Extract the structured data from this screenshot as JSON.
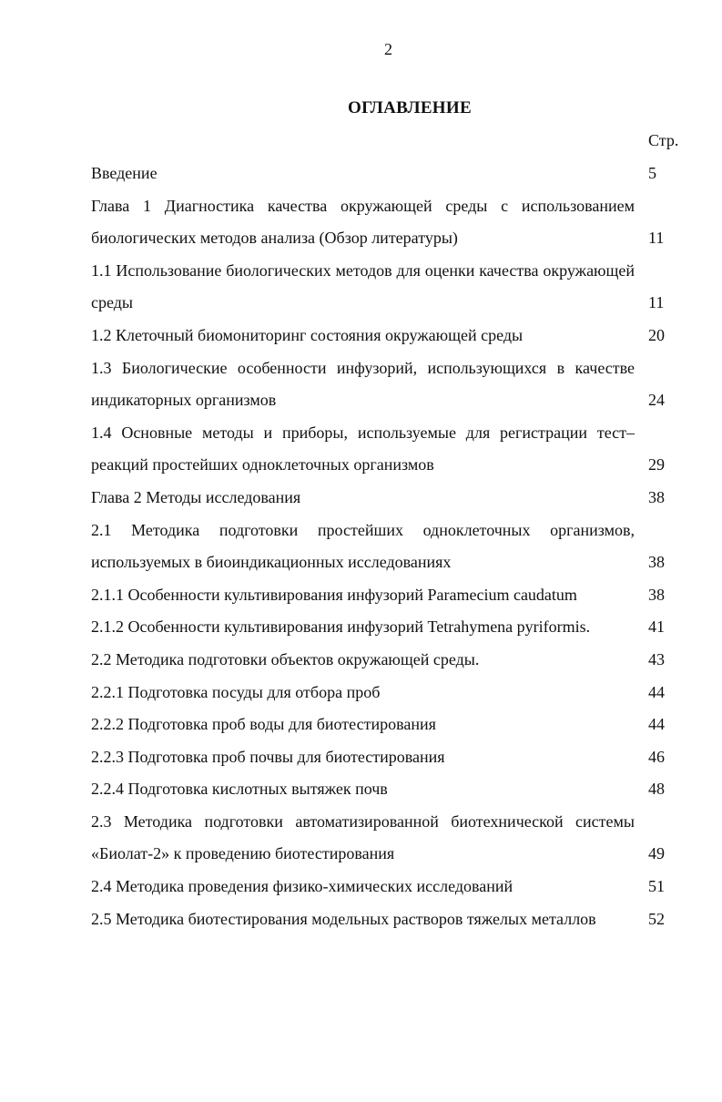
{
  "page_number": "2",
  "title": "ОГЛАВЛЕНИЕ",
  "page_column_label": "Стр.",
  "entries": [
    {
      "text": "Введение",
      "page": "5"
    },
    {
      "text": "Глава 1 Диагностика качества окружающей среды с использованием биологических методов анализа (Обзор литературы)",
      "page": "11"
    },
    {
      "text": "1.1 Использование биологических методов для оценки качества окружающей среды",
      "page": "11"
    },
    {
      "text": "1.2 Клеточный биомониторинг состояния окружающей среды",
      "page": "20"
    },
    {
      "text": "1.3 Биологические особенности инфузорий, использующихся в качестве индикаторных организмов",
      "page": "24"
    },
    {
      "text": "1.4 Основные методы и приборы, используемые для регистрации тест–реакций простейших одноклеточных организмов",
      "page": "29"
    },
    {
      "text": "Глава 2 Методы исследования",
      "page": "38"
    },
    {
      "text": "2.1 Методика подготовки простейших одноклеточных организмов, используемых в биоиндикационных исследованиях",
      "page": "38"
    },
    {
      "text": "2.1.1 Особенности культивирования инфузорий Paramecium caudatum",
      "page": "38"
    },
    {
      "text": "2.1.2 Особенности культивирования инфузорий Tetrahymena pyriformis.",
      "page": "41"
    },
    {
      "text": "2.2 Методика подготовки объектов окружающей среды.",
      "page": "43"
    },
    {
      "text": "2.2.1 Подготовка посуды для отбора проб",
      "page": "44"
    },
    {
      "text": "2.2.2 Подготовка проб воды для биотестирования",
      "page": "44"
    },
    {
      "text": "2.2.3 Подготовка проб почвы для биотестирования",
      "page": "46"
    },
    {
      "text": "2.2.4 Подготовка кислотных вытяжек почв",
      "page": "48"
    },
    {
      "text": "2.3 Методика подготовки автоматизированной биотехнической системы «Биолат-2» к проведению биотестирования",
      "page": "49"
    },
    {
      "text": "2.4 Методика проведения физико-химических исследований",
      "page": "51"
    },
    {
      "text": "2.5 Методика биотестирования модельных растворов тяжелых металлов",
      "page": "52"
    }
  ]
}
